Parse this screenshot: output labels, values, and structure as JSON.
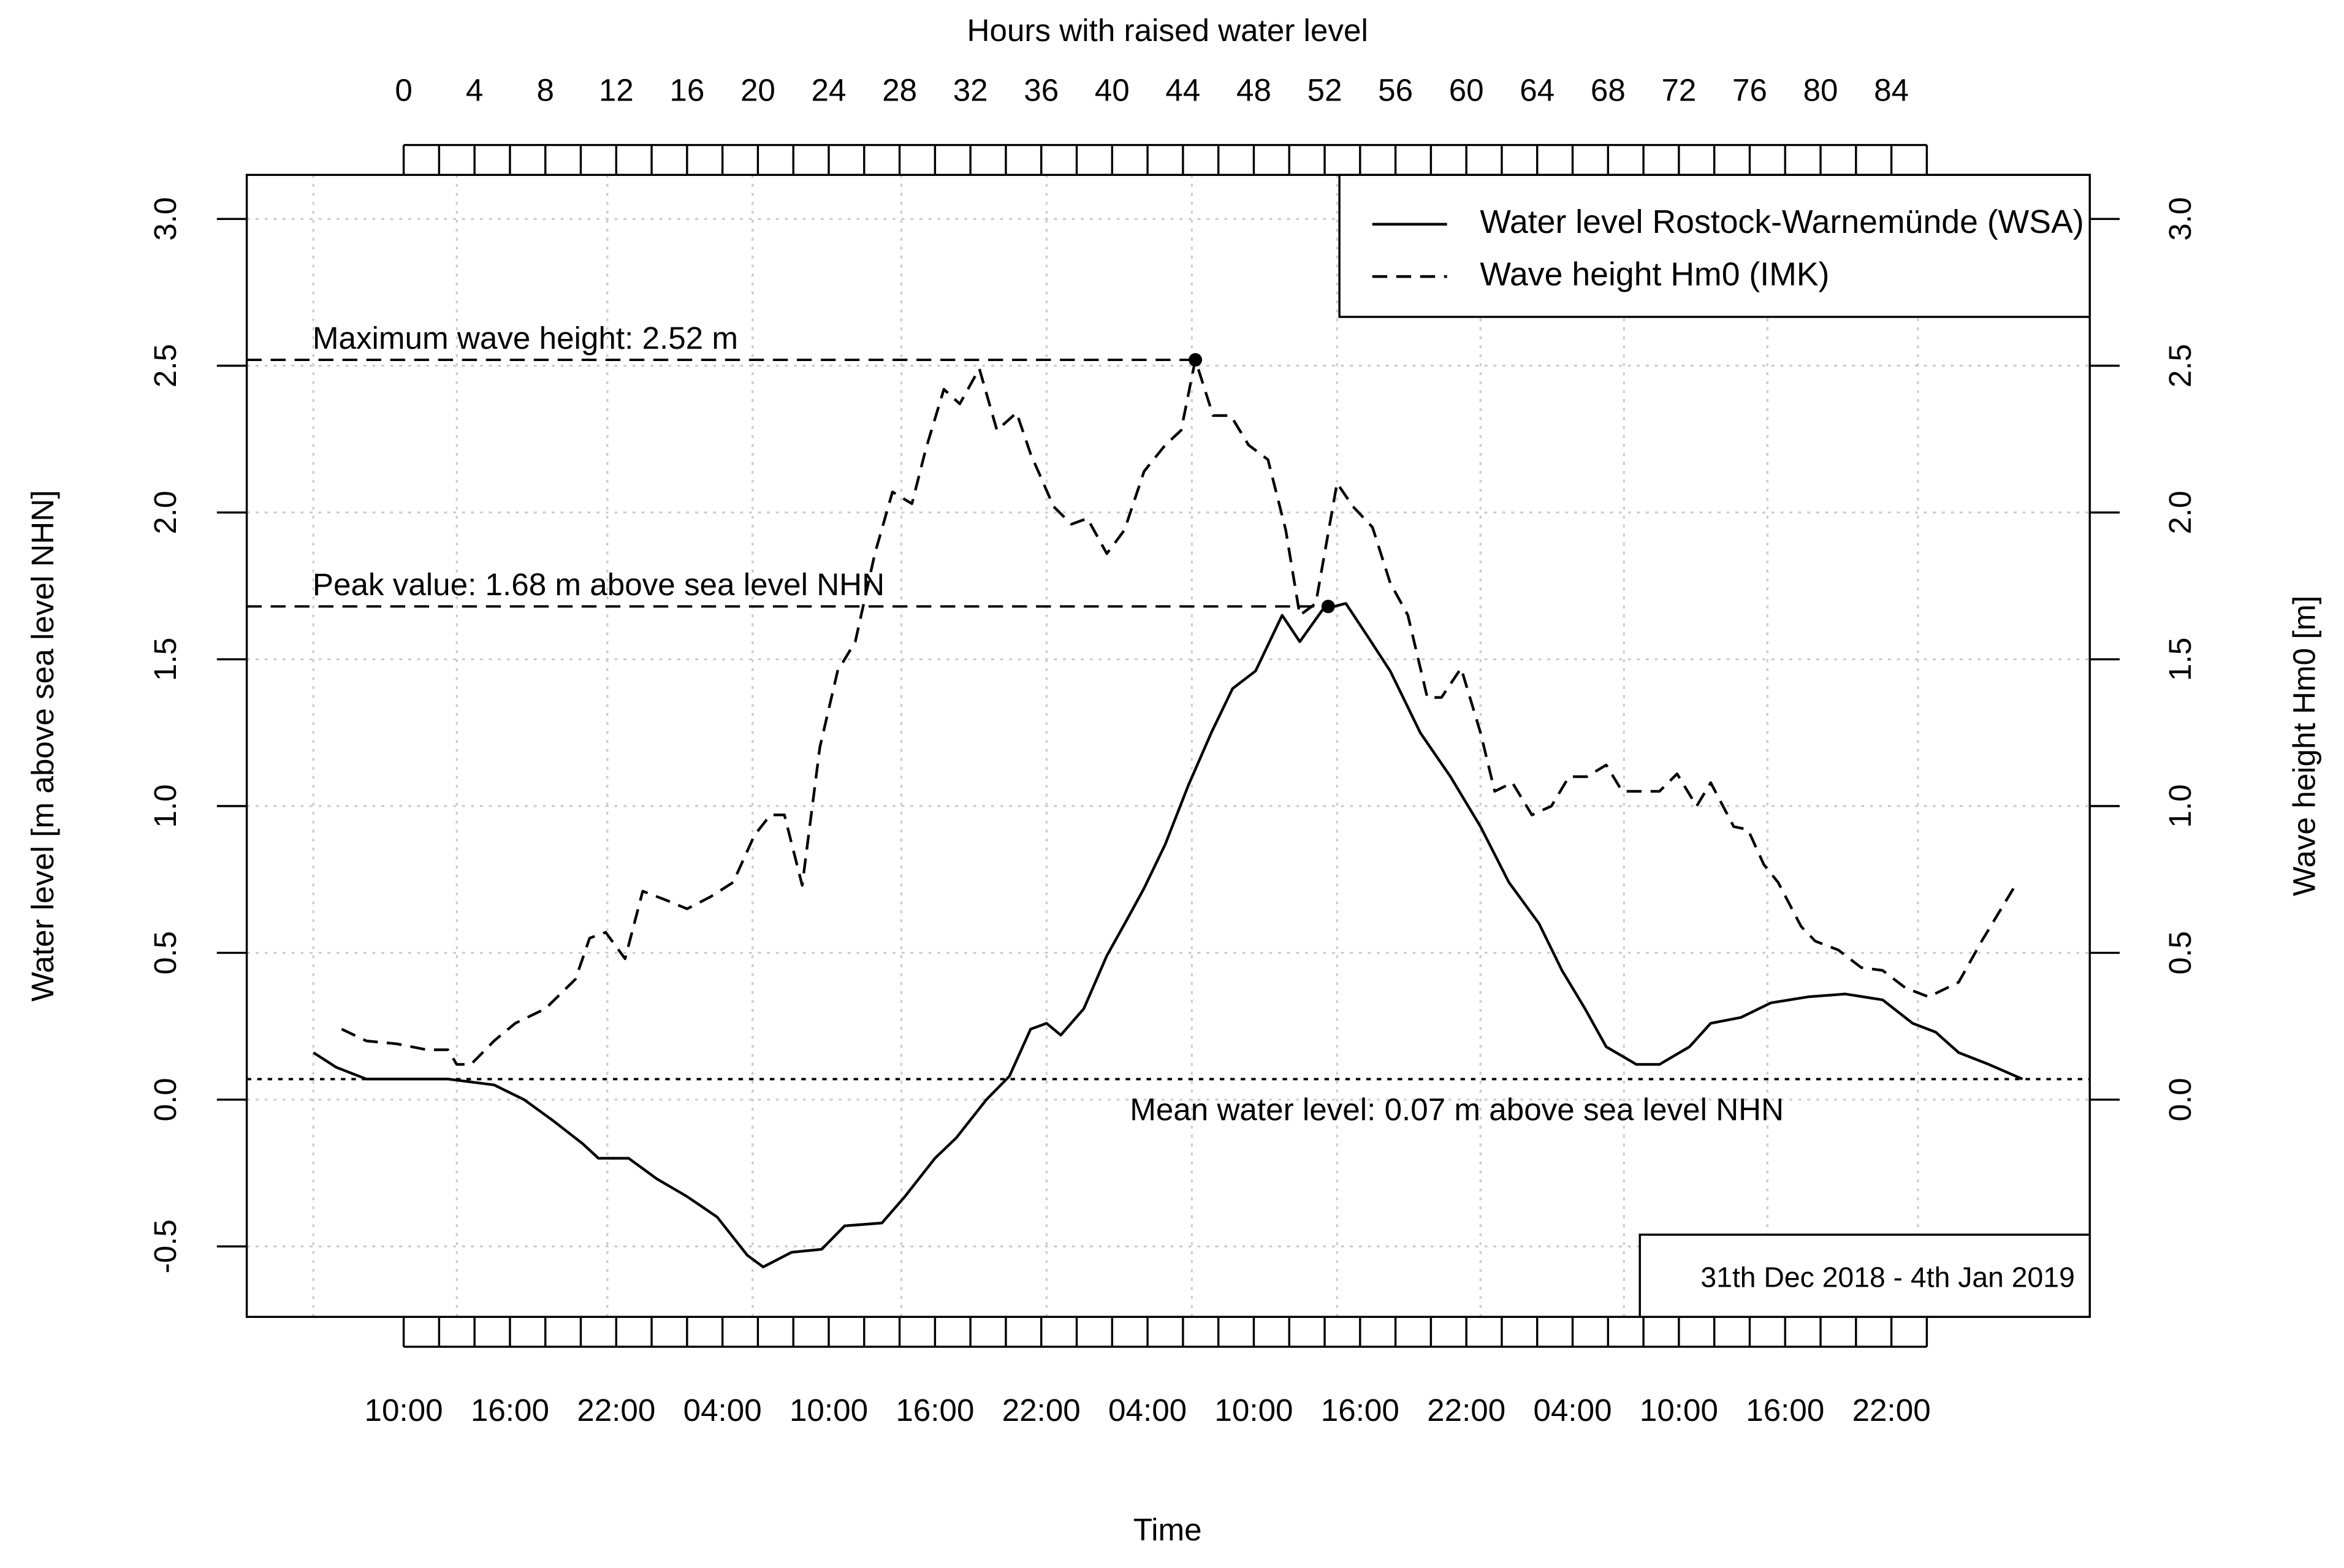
{
  "chart_data": {
    "type": "line",
    "title": "Hours with raised water level",
    "xlabel": "Time",
    "ylabel": "Water level [m above sea level NHN]",
    "y2label": "Wave height Hm0 [m]",
    "date_range": "31th Dec 2018 - 4th Jan 2019",
    "xlim": [
      -8.86,
      95.2
    ],
    "ylim": [
      -0.74,
      3.15
    ],
    "y2lim": [
      -0.74,
      3.15
    ],
    "xticks": [
      0,
      4,
      8,
      12,
      16,
      20,
      24,
      28,
      32,
      36,
      40,
      44,
      48,
      52,
      56,
      60,
      64,
      68,
      72,
      76,
      80,
      84
    ],
    "minor_ticks": [
      0,
      2,
      4,
      6,
      8,
      10,
      12,
      14,
      16,
      18,
      20,
      22,
      24,
      26,
      28,
      30,
      32,
      34,
      36,
      38,
      40,
      42,
      44,
      46,
      48,
      50,
      52,
      54,
      56,
      58,
      60,
      62,
      64,
      66,
      68,
      70,
      72,
      74,
      76,
      78,
      80,
      82,
      84,
      86
    ],
    "time_ticks": [
      {
        "value": 0,
        "label": "10:00"
      },
      {
        "value": 6,
        "label": "16:00"
      },
      {
        "value": 12,
        "label": "22:00"
      },
      {
        "value": 18,
        "label": "04:00"
      },
      {
        "value": 24,
        "label": "10:00"
      },
      {
        "value": 30,
        "label": "16:00"
      },
      {
        "value": 36,
        "label": "22:00"
      },
      {
        "value": 42,
        "label": "04:00"
      },
      {
        "value": 48,
        "label": "10:00"
      },
      {
        "value": 54,
        "label": "16:00"
      },
      {
        "value": 60,
        "label": "22:00"
      },
      {
        "value": 66,
        "label": "04:00"
      },
      {
        "value": 72,
        "label": "10:00"
      },
      {
        "value": 78,
        "label": "16:00"
      },
      {
        "value": 84,
        "label": "22:00"
      }
    ],
    "yticks": [
      -0.5,
      {
        "value": 0,
        "label": "0.0"
      },
      0.5,
      {
        "value": 1,
        "label": "1.0"
      },
      1.5,
      {
        "value": 2,
        "label": "2.0"
      },
      2.5,
      {
        "value": 3,
        "label": "3.0"
      }
    ],
    "y2ticks": [
      {
        "value": 0,
        "label": "0.0"
      },
      0.5,
      {
        "value": 1,
        "label": "1.0"
      },
      1.5,
      {
        "value": 2,
        "label": "2.0"
      },
      2.5,
      {
        "value": 3,
        "label": "3.0"
      }
    ],
    "grid": true,
    "xgrid": [
      -5.1,
      3.0,
      11.5,
      19.7,
      28.1,
      36.3,
      44.5,
      52.7,
      60.8,
      68.9,
      77.0,
      85.5
    ],
    "legend": "top-right",
    "series": [
      {
        "name": "Water level Rostock-Warnemünde (WSA)",
        "color": "#000000",
        "dash": "solid",
        "x": [
          -5.1,
          -3.8,
          -2.1,
          0,
          2.5,
          5.1,
          6.8,
          8.4,
          10.1,
          11.0,
          12.7,
          14.3,
          16.0,
          17.7,
          19.4,
          20.3,
          21.9,
          23.6,
          24.9,
          27.0,
          28.3,
          30.0,
          31.2,
          32.9,
          34.2,
          35.4,
          36.3,
          37.1,
          38.4,
          39.7,
          40.9,
          41.8,
          43.0,
          44.3,
          45.6,
          46.8,
          48.1,
          49.6,
          50.6,
          51.9,
          53.2,
          54.4,
          55.7,
          57.4,
          59.1,
          60.8,
          62.4,
          64.1,
          65.4,
          66.7,
          67.9,
          69.6,
          70.9,
          72.6,
          73.8,
          75.5,
          77.2,
          79.3,
          81.4,
          83.5,
          85.2,
          86.5,
          87.8,
          89.5,
          91.4
        ],
        "values": [
          0.16,
          0.11,
          0.07,
          0.07,
          0.07,
          0.05,
          0.0,
          -0.07,
          -0.15,
          -0.2,
          -0.2,
          -0.27,
          -0.33,
          -0.4,
          -0.53,
          -0.57,
          -0.52,
          -0.51,
          -0.43,
          -0.42,
          -0.33,
          -0.2,
          -0.13,
          0.0,
          0.08,
          0.24,
          0.26,
          0.22,
          0.31,
          0.49,
          0.62,
          0.72,
          0.87,
          1.07,
          1.25,
          1.4,
          1.46,
          1.65,
          1.56,
          1.67,
          1.69,
          1.58,
          1.46,
          1.25,
          1.1,
          0.93,
          0.74,
          0.6,
          0.44,
          0.31,
          0.18,
          0.12,
          0.12,
          0.18,
          0.26,
          0.28,
          0.33,
          0.35,
          0.36,
          0.34,
          0.26,
          0.23,
          0.16,
          0.12,
          0.07
        ]
      },
      {
        "name": "Wave height Hm0 (IMK)",
        "color": "#000000",
        "dash": "dashed",
        "axis": "y2",
        "x": [
          -3.5,
          -2.1,
          -0.4,
          1.3,
          2.5,
          3.0,
          3.8,
          5.1,
          6.3,
          8.0,
          9.7,
          10.5,
          11.4,
          12.5,
          13.5,
          14.8,
          16.0,
          17.3,
          18.6,
          19.8,
          20.7,
          21.5,
          22.5,
          23.5,
          24.5,
          25.5,
          26.6,
          27.6,
          28.7,
          29.5,
          30.5,
          31.4,
          32.5,
          33.5,
          34.6,
          35.4,
          36.7,
          37.7,
          38.6,
          39.7,
          40.7,
          41.8,
          43.0,
          43.9,
          44.7,
          45.7,
          46.7,
          47.7,
          48.8,
          49.8,
          50.6,
          51.5,
          52.7,
          53.6,
          54.7,
          55.7,
          56.7,
          57.8,
          58.6,
          59.7,
          60.8,
          61.6,
          62.6,
          63.7,
          64.8,
          65.8,
          66.8,
          67.9,
          68.8,
          70.9,
          71.9,
          73.0,
          73.8,
          75.1,
          75.9,
          76.8,
          77.6,
          78.9,
          79.7,
          81.0,
          82.3,
          83.5,
          84.8,
          86.1,
          87.8,
          89.1,
          91.0
        ],
        "values": [
          0.24,
          0.2,
          0.19,
          0.17,
          0.17,
          0.12,
          0.12,
          0.2,
          0.26,
          0.31,
          0.41,
          0.55,
          0.57,
          0.48,
          0.71,
          0.68,
          0.65,
          0.69,
          0.74,
          0.9,
          0.97,
          0.97,
          0.73,
          1.2,
          1.46,
          1.56,
          1.86,
          2.07,
          2.03,
          2.22,
          2.42,
          2.37,
          2.49,
          2.28,
          2.34,
          2.2,
          2.02,
          1.96,
          1.98,
          1.86,
          1.94,
          2.14,
          2.23,
          2.28,
          2.52,
          2.33,
          2.33,
          2.23,
          2.18,
          1.94,
          1.65,
          1.69,
          2.1,
          2.02,
          1.95,
          1.76,
          1.65,
          1.37,
          1.37,
          1.47,
          1.25,
          1.05,
          1.08,
          0.97,
          1.0,
          1.1,
          1.1,
          1.14,
          1.05,
          1.05,
          1.11,
          1.0,
          1.08,
          0.93,
          0.92,
          0.8,
          0.74,
          0.59,
          0.54,
          0.51,
          0.45,
          0.44,
          0.38,
          0.35,
          0.4,
          0.54,
          0.73
        ]
      }
    ],
    "reference_lines": [
      {
        "label": "Maximum wave height: 2.52 m",
        "value": 2.52,
        "x_end": 44.7,
        "axis": "y2",
        "style": "dashed"
      },
      {
        "label": "Peak value: 1.68 m above sea level NHN",
        "value": 1.68,
        "x_end": 52.2,
        "style": "dashed"
      },
      {
        "label": "Mean water level: 0.07 m above sea level NHN",
        "value": 0.07,
        "style": "dotted"
      }
    ]
  }
}
